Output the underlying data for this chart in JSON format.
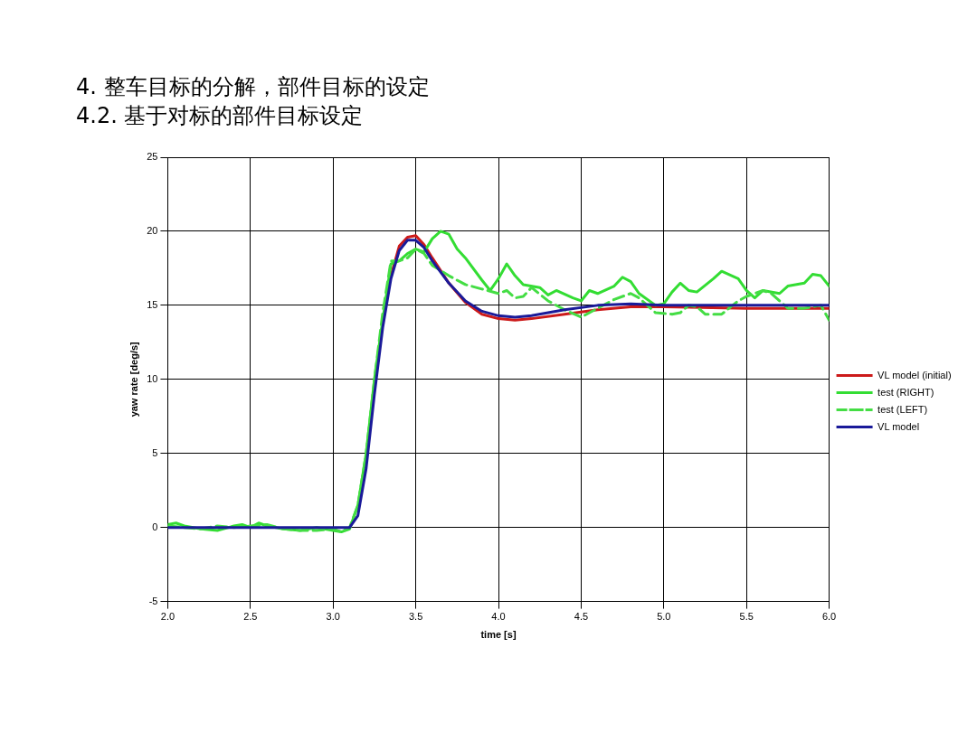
{
  "chart_data": {
    "type": "line",
    "title": "4. 整车目标的分解，部件目标的设定",
    "subtitle": "4.2. 基于对标的部件目标设定",
    "xlabel": "time [s]",
    "ylabel": "yaw rate [deg/s]",
    "xlim": [
      2,
      6
    ],
    "xticks": [
      {
        "value": 2,
        "label": "2.0"
      },
      {
        "value": 2.5,
        "label": "2.5"
      },
      {
        "value": 3,
        "label": "3.0"
      },
      {
        "value": 3.5,
        "label": "3.5"
      },
      {
        "value": 4,
        "label": "4.0"
      },
      {
        "value": 4.5,
        "label": "4.5"
      },
      {
        "value": 5,
        "label": "5.0"
      },
      {
        "value": 5.5,
        "label": "5.5"
      },
      {
        "value": 6,
        "label": "6.0"
      }
    ],
    "ylim": [
      -5,
      25
    ],
    "yticks": [
      -5,
      0,
      5,
      10,
      15,
      20,
      25
    ],
    "grid": true,
    "legend": "right",
    "marker": "none",
    "series": [
      {
        "name": "VL model (initial)",
        "color": "#cc1a1a",
        "line_style": "solid",
        "x": [
          3.35,
          3.4,
          3.45,
          3.5,
          3.55,
          3.6,
          3.7,
          3.8,
          3.9,
          4,
          4.1,
          4.2,
          4.4,
          4.6,
          4.8,
          5,
          5.5,
          6
        ],
        "values": [
          17,
          19,
          19.6,
          19.7,
          19.1,
          18.2,
          16.5,
          15.2,
          14.4,
          14.1,
          14,
          14.1,
          14.4,
          14.7,
          14.9,
          14.9,
          14.8,
          14.8
        ]
      },
      {
        "name": "test (RIGHT)",
        "color": "#33dd33",
        "line_style": "solid",
        "x": [
          2,
          2.05,
          2.1,
          2.2,
          2.3,
          2.4,
          2.45,
          2.5,
          2.55,
          2.6,
          2.7,
          2.8,
          2.9,
          3,
          3.05,
          3.1,
          3.15,
          3.2,
          3.25,
          3.3,
          3.35,
          3.4,
          3.45,
          3.5,
          3.55,
          3.6,
          3.65,
          3.7,
          3.75,
          3.8,
          3.9,
          3.95,
          4,
          4.05,
          4.1,
          4.15,
          4.25,
          4.3,
          4.35,
          4.45,
          4.5,
          4.55,
          4.6,
          4.7,
          4.75,
          4.8,
          4.85,
          4.95,
          5,
          5.05,
          5.1,
          5.15,
          5.2,
          5.3,
          5.35,
          5.45,
          5.5,
          5.55,
          5.6,
          5.7,
          5.75,
          5.85,
          5.9,
          5.95,
          6
        ],
        "values": [
          0.2,
          0.3,
          0.1,
          -0.1,
          -0.2,
          0.1,
          0.2,
          0,
          0.3,
          0.1,
          -0.1,
          -0.2,
          0,
          -0.2,
          -0.3,
          -0.1,
          1.5,
          5,
          10,
          14,
          17.8,
          18,
          18.5,
          18.8,
          18.6,
          19.5,
          20,
          19.8,
          18.8,
          18.2,
          16.7,
          16,
          16.8,
          17.8,
          17,
          16.4,
          16.2,
          15.7,
          16,
          15.5,
          15.3,
          16,
          15.8,
          16.3,
          16.9,
          16.6,
          15.8,
          15,
          15.1,
          15.9,
          16.5,
          16,
          15.9,
          16.8,
          17.3,
          16.8,
          16,
          15.5,
          16,
          15.8,
          16.3,
          16.5,
          17.1,
          17,
          16.3
        ]
      },
      {
        "name": "test (LEFT)",
        "color": "#44dd44",
        "line_style": "dashed",
        "x": [
          2,
          2.1,
          2.2,
          2.3,
          2.4,
          2.5,
          2.6,
          2.7,
          2.8,
          2.9,
          3,
          3.05,
          3.1,
          3.15,
          3.2,
          3.25,
          3.3,
          3.35,
          3.4,
          3.45,
          3.5,
          3.55,
          3.6,
          3.7,
          3.8,
          3.9,
          4,
          4.05,
          4.1,
          4.15,
          4.2,
          4.3,
          4.4,
          4.5,
          4.6,
          4.7,
          4.8,
          4.85,
          4.95,
          5.05,
          5.1,
          5.15,
          5.2,
          5.25,
          5.35,
          5.45,
          5.5,
          5.6,
          5.65,
          5.75,
          5.85,
          5.95,
          6
        ],
        "values": [
          0.1,
          0,
          -0.1,
          0.1,
          0,
          0.1,
          0.2,
          -0.1,
          -0.2,
          -0.2,
          -0.1,
          -0.3,
          0,
          1.5,
          5,
          10,
          14.5,
          18,
          18,
          18.2,
          18.8,
          18.5,
          17.7,
          17,
          16.4,
          16.1,
          15.8,
          16,
          15.5,
          15.6,
          16.2,
          15.3,
          14.7,
          14.2,
          14.8,
          15.4,
          15.8,
          15.5,
          14.5,
          14.4,
          14.5,
          15,
          14.9,
          14.4,
          14.4,
          15.3,
          15.6,
          16,
          15.8,
          14.8,
          14.8,
          15,
          14
        ]
      },
      {
        "name": "VL model",
        "color": "#1a1a99",
        "line_style": "solid",
        "x": [
          2,
          3.1,
          3.15,
          3.2,
          3.25,
          3.3,
          3.35,
          3.4,
          3.45,
          3.5,
          3.55,
          3.6,
          3.7,
          3.8,
          3.9,
          4,
          4.1,
          4.2,
          4.4,
          4.6,
          4.8,
          5,
          5.5,
          6
        ],
        "values": [
          0,
          0,
          0.8,
          4,
          9,
          13.5,
          16.8,
          18.7,
          19.4,
          19.4,
          18.9,
          18,
          16.5,
          15.3,
          14.6,
          14.3,
          14.2,
          14.3,
          14.7,
          15,
          15.1,
          15,
          15,
          15
        ]
      }
    ]
  }
}
